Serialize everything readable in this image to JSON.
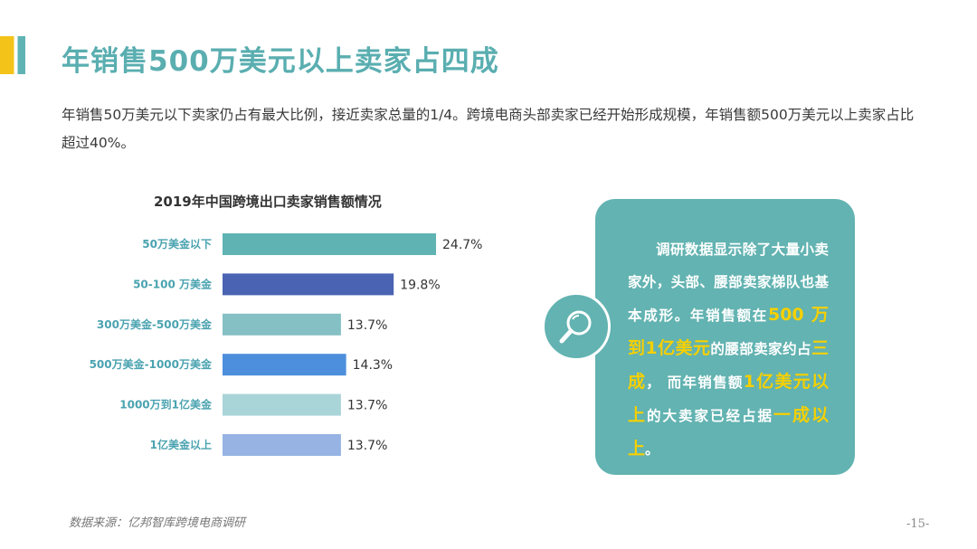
{
  "page": {
    "title": "年销售500万美元以上卖家占四成",
    "intro": "年销售50万美元以下卖家仍占有最大比例，接近卖家总量的1/4。跨境电商头部卖家已经开始形成规模，年销售额500万美元以上卖家占比超过40%。",
    "source": "数据来源：亿邦智库跨境电商调研",
    "page_number": "-15-"
  },
  "note": {
    "segments": [
      {
        "text": "调研数据显示除了大量小卖家外，头部、腰部卖家梯队也基本成形。年销售额在",
        "highlight": false
      },
      {
        "text": "500 万到1亿美元",
        "highlight": true
      },
      {
        "text": "的腰部卖家约占",
        "highlight": false
      },
      {
        "text": "三成",
        "highlight": true
      },
      {
        "text": "， 而年销售额",
        "highlight": false
      },
      {
        "text": "1亿美元以上",
        "highlight": true
      },
      {
        "text": "的大卖家已经占据",
        "highlight": false
      },
      {
        "text": "一成以上",
        "highlight": true
      },
      {
        "text": "。",
        "highlight": false
      }
    ],
    "icon": "magnifier-icon"
  },
  "chart_data": {
    "type": "bar",
    "orientation": "horizontal",
    "title": "2019年中国跨境出口卖家销售额情况",
    "categories": [
      "50万美金以下",
      "50-100 万美金",
      "300万美金-500万美金",
      "500万美金-1000万美金",
      "1000万到1亿美金",
      "1亿美金以上"
    ],
    "values": [
      24.7,
      19.8,
      13.7,
      14.3,
      13.7,
      13.7
    ],
    "value_labels": [
      "24.7%",
      "19.8%",
      "13.7%",
      "14.3%",
      "13.7%",
      "13.7%"
    ],
    "unit": "%",
    "colors": [
      "#5fb3b3",
      "#4a63b3",
      "#85c0c4",
      "#4d8fdc",
      "#a9d4d8",
      "#96b3e3"
    ],
    "label_color": "#4aa3b0",
    "grid": false,
    "legend": "none"
  }
}
